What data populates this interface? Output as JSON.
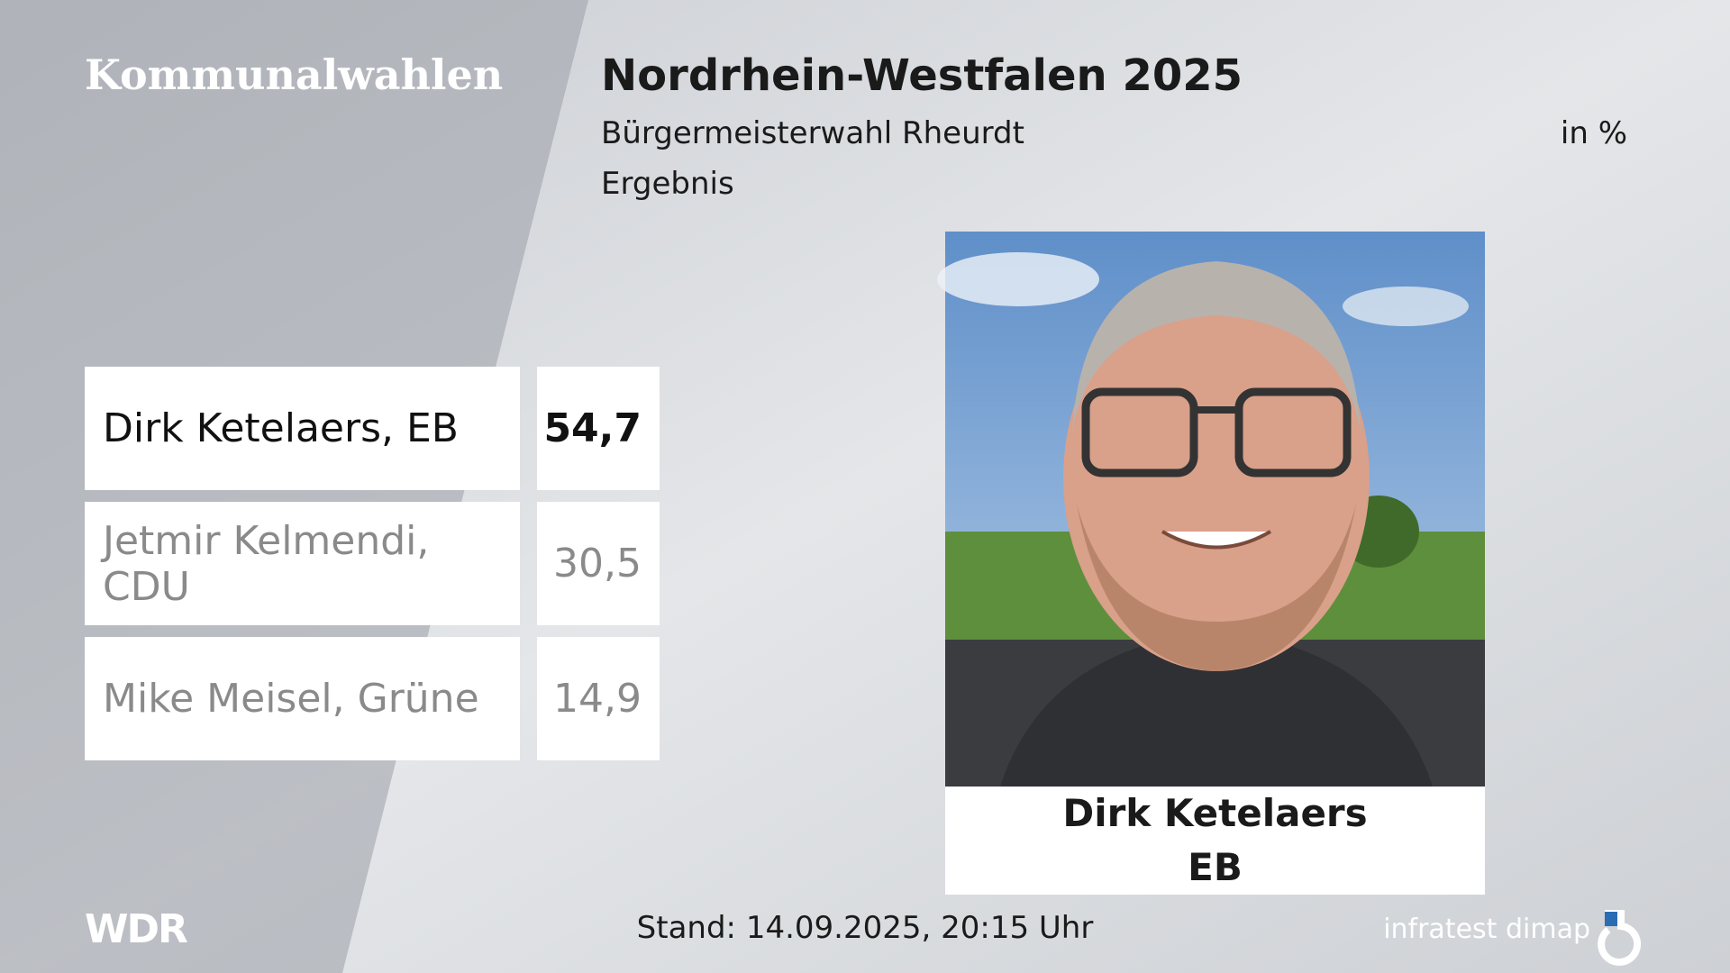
{
  "header": {
    "section": "Kommunalwahlen",
    "title": "Nordrhein-Westfalen 2025",
    "subtitle": "Bürgermeisterwahl Rheurdt",
    "unit": "in %",
    "status": "Ergebnis"
  },
  "table": {
    "rows": [
      [
        "Dirk Ketelaers, EB",
        "54,7"
      ],
      [
        "Jetmir Kelmendi, CDU",
        "30,5"
      ],
      [
        "Mike Meisel, Grüne",
        "14,9"
      ]
    ]
  },
  "photo": {
    "name": "Dirk Ketelaers",
    "party": "EB"
  },
  "footer": {
    "broadcaster": "WDR",
    "timestamp": "Stand: 14.09.2025, 20:15 Uhr",
    "source": "infratest dimap"
  }
}
